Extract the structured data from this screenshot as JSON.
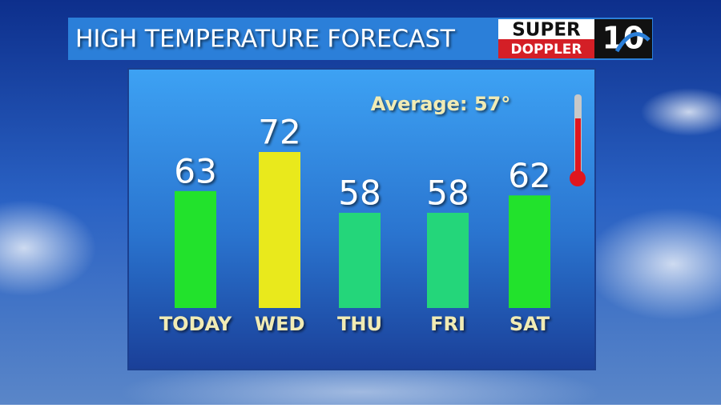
{
  "chart_data": {
    "type": "bar",
    "title": "HIGH TEMPERATURE FORECAST",
    "annotation": "Average: 57°",
    "categories": [
      "TODAY",
      "WED",
      "THU",
      "FRI",
      "SAT"
    ],
    "values": [
      63,
      72,
      58,
      58,
      62
    ],
    "colors": [
      "#22e22c",
      "#e9e91c",
      "#24d67a",
      "#24d67a",
      "#22e22c"
    ]
  },
  "logo": {
    "top": "SUPER",
    "bottom": "DOPPLER",
    "number": "10"
  }
}
